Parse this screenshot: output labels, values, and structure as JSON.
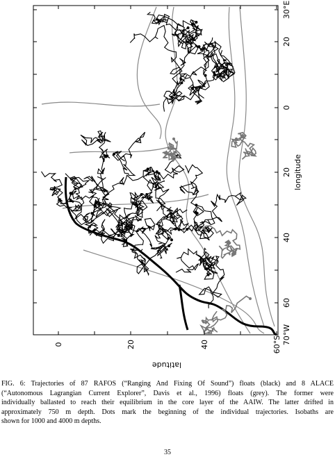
{
  "figure": {
    "right_axis_labels": [
      "30°E",
      "20",
      "0",
      "20",
      "40",
      "60",
      "70°W"
    ],
    "right_axis_title": "longitude",
    "bottom_axis_labels": [
      "0",
      "20",
      "40",
      "60°S"
    ],
    "bottom_axis_title": "latitude"
  },
  "caption": {
    "lines": [
      "FIG. 6: Trajectories of 87 RAFOS (“Ranging And Fixing Of Sound”) floats (black) and 8 ALACE",
      "(“Autonomous Lagrangian Current Explorer”, Davis et al., 1996) floats (grey).  The former were",
      "individually ballasted to reach their equilibrium in the core layer of the AAIW. The latter drifted in",
      "approximately 750 m depth.  Dots mark the beginning of the individual trajectories.  Isobaths are",
      "shown for 1000 and 4000 m depths."
    ]
  },
  "page_number": "35"
}
